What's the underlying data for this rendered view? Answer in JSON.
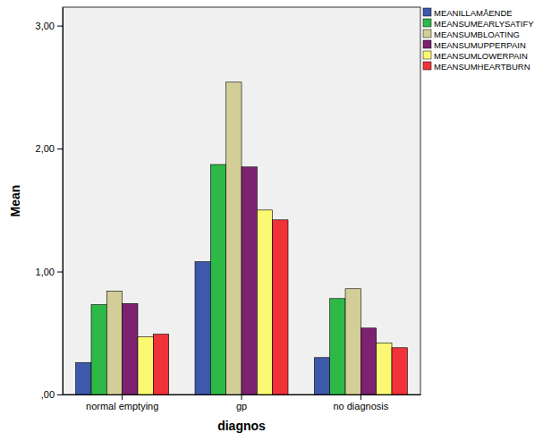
{
  "chart_data": {
    "type": "bar",
    "x_label": "diagnos",
    "y_label": "Mean",
    "categories": [
      "normal emptying",
      "gp",
      "no diagnosis"
    ],
    "series": [
      {
        "name": "MEANILLAMÅENDE",
        "color": "#3e58ac",
        "values": [
          0.26,
          1.08,
          0.3
        ]
      },
      {
        "name": "MEANSUMEARLYSATIFY",
        "color": "#2eb848",
        "values": [
          0.73,
          1.87,
          0.78
        ]
      },
      {
        "name": "MEANSUMBLOATING",
        "color": "#d3ce97",
        "values": [
          0.84,
          2.54,
          0.86
        ]
      },
      {
        "name": "MEANSUMUPPERPAIN",
        "color": "#7c2270",
        "values": [
          0.74,
          1.85,
          0.54
        ]
      },
      {
        "name": "MEANSUMLOWERPAIN",
        "color": "#fbf873",
        "values": [
          0.47,
          1.5,
          0.42
        ]
      },
      {
        "name": "MEANSUMHEARTBURN",
        "color": "#ef3338",
        "values": [
          0.49,
          1.42,
          0.38
        ]
      }
    ],
    "ylim": [
      0,
      3.15
    ],
    "yticks": [
      {
        "value": 0,
        "label": ",00"
      },
      {
        "value": 1,
        "label": "1,00"
      },
      {
        "value": 2,
        "label": "2,00"
      },
      {
        "value": 3,
        "label": "3,00"
      }
    ],
    "grid": false,
    "legend": "right"
  }
}
